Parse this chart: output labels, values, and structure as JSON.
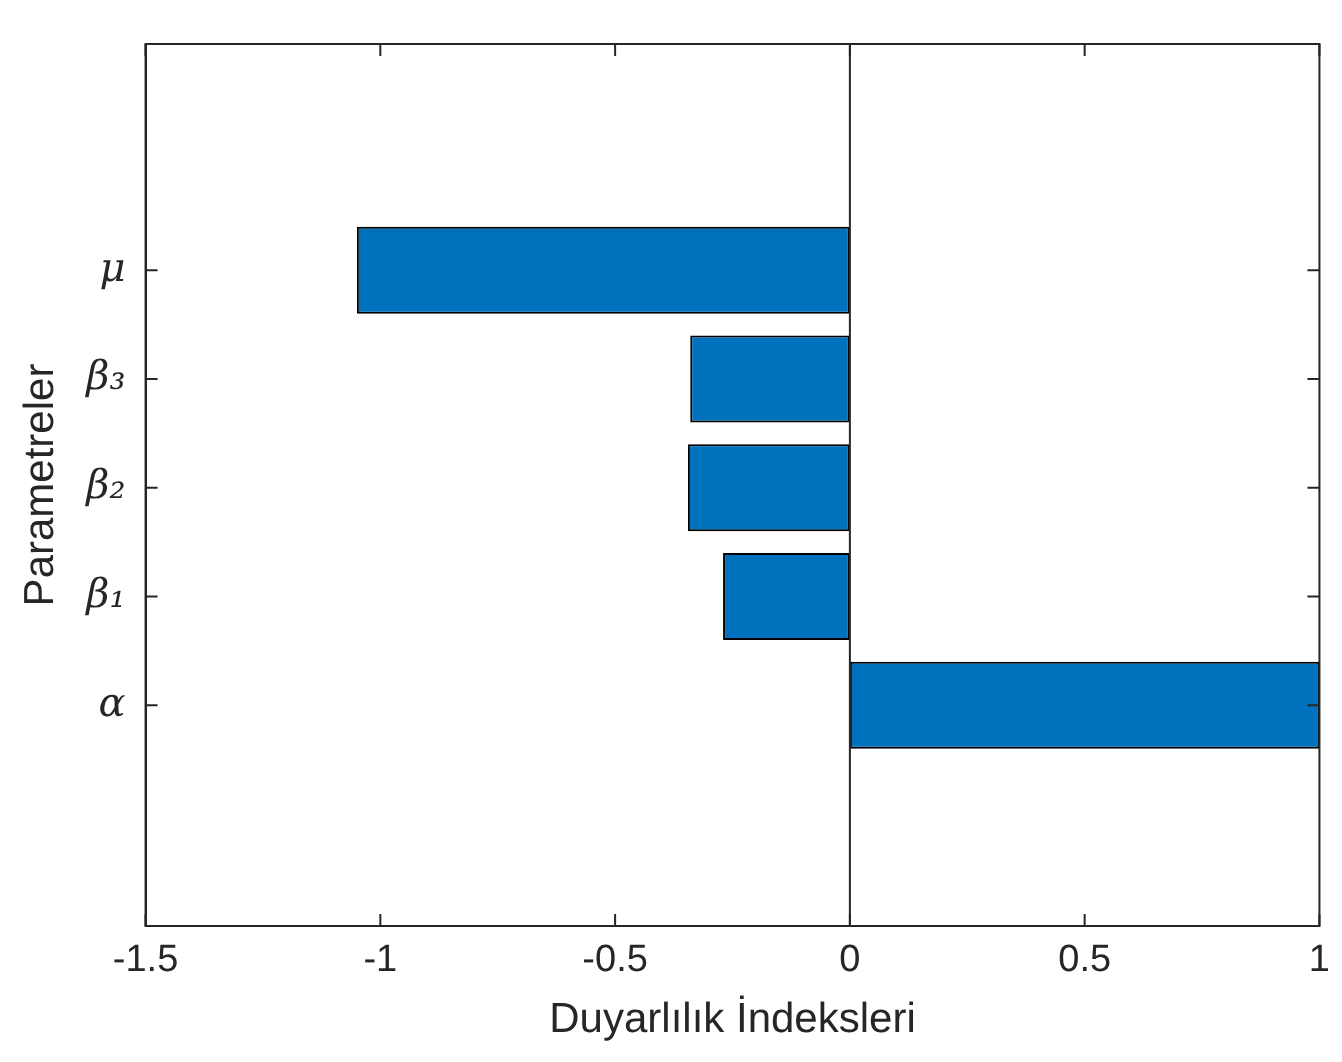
{
  "chart_data": {
    "type": "bar",
    "orientation": "horizontal",
    "xlabel": "Duyarlılık İndeksleri",
    "ylabel": "Parametreler",
    "categories": [
      "μ",
      "β₃",
      "β₂",
      "β₁",
      "α"
    ],
    "values": [
      -1.05,
      -0.34,
      -0.345,
      -0.27,
      1.0
    ],
    "color": "#0072bd",
    "xlim": [
      -1.5,
      1
    ],
    "xticks": [
      -1.5,
      -1,
      -0.5,
      0,
      0.5,
      1
    ],
    "ref_lines": [
      {
        "axis": "x",
        "value": 0,
        "color": "#262626"
      }
    ],
    "grid": false,
    "legend": false
  }
}
